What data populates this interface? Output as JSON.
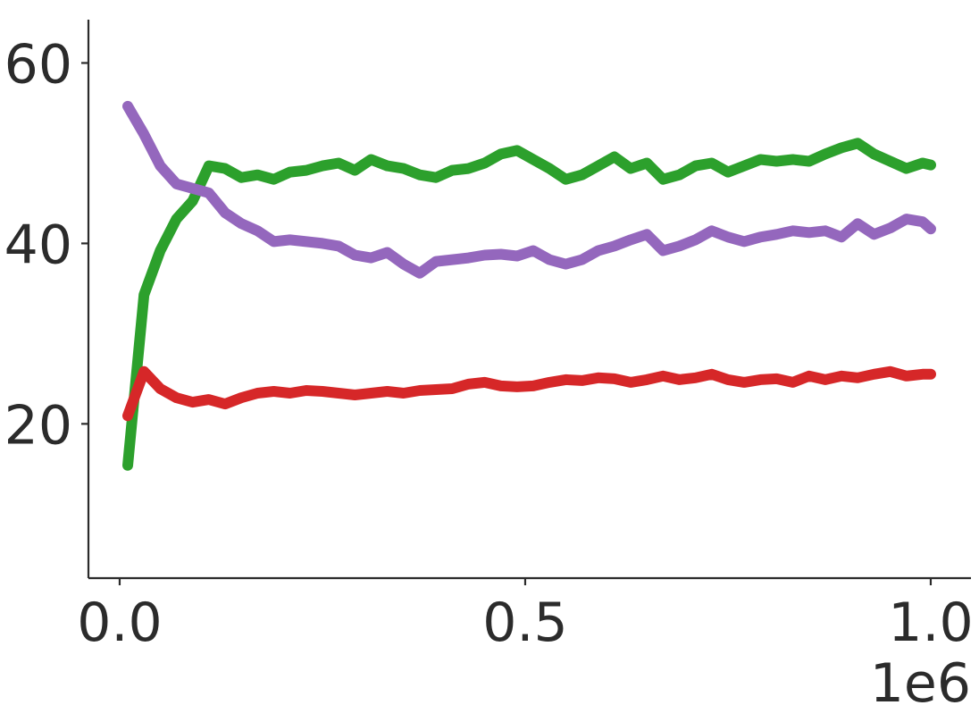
{
  "chart_data": {
    "type": "line",
    "x": [
      10000,
      30000,
      50000,
      70000,
      90000,
      110000,
      130000,
      150000,
      170000,
      190000,
      210000,
      230000,
      250000,
      270000,
      290000,
      310000,
      330000,
      350000,
      370000,
      390000,
      410000,
      430000,
      450000,
      470000,
      490000,
      510000,
      530000,
      550000,
      570000,
      590000,
      610000,
      630000,
      650000,
      670000,
      690000,
      710000,
      730000,
      750000,
      770000,
      790000,
      810000,
      830000,
      850000,
      870000,
      890000,
      910000,
      930000,
      950000,
      970000,
      990000,
      1000000
    ],
    "series": [
      {
        "color": "#2ca02c",
        "values": [
          15.4,
          34.3,
          39.2,
          42.7,
          44.7,
          48.6,
          48.3,
          47.3,
          47.6,
          47.1,
          47.9,
          48.1,
          48.6,
          48.9,
          48.1,
          49.3,
          48.6,
          48.3,
          47.6,
          47.3,
          48.1,
          48.3,
          48.9,
          49.9,
          50.3,
          49.3,
          48.3,
          47.1,
          47.6,
          48.6,
          49.6,
          48.3,
          48.9,
          47.1,
          47.6,
          48.6,
          48.9,
          47.9,
          48.6,
          49.3,
          49.1,
          49.3,
          49.1,
          49.9,
          50.6,
          51.1,
          49.9,
          49.1,
          48.3,
          48.9,
          48.7
        ]
      },
      {
        "color": "#9467bd",
        "values": [
          55.2,
          52.1,
          48.6,
          46.6,
          46.1,
          45.6,
          43.4,
          42.2,
          41.4,
          40.2,
          40.4,
          40.2,
          40.0,
          39.7,
          38.7,
          38.4,
          39.0,
          37.7,
          36.7,
          38.0,
          38.2,
          38.4,
          38.7,
          38.8,
          38.6,
          39.2,
          38.2,
          37.7,
          38.2,
          39.2,
          39.7,
          40.4,
          41.0,
          39.2,
          39.7,
          40.4,
          41.4,
          40.7,
          40.2,
          40.7,
          41.0,
          41.4,
          41.2,
          41.4,
          40.7,
          42.2,
          41.0,
          41.7,
          42.7,
          42.4,
          41.6
        ]
      },
      {
        "color": "#d62728",
        "values": [
          20.9,
          25.8,
          23.9,
          22.9,
          22.4,
          22.7,
          22.2,
          22.9,
          23.4,
          23.6,
          23.4,
          23.7,
          23.6,
          23.4,
          23.2,
          23.4,
          23.6,
          23.4,
          23.7,
          23.8,
          23.9,
          24.4,
          24.6,
          24.2,
          24.1,
          24.2,
          24.6,
          24.9,
          24.8,
          25.1,
          25.0,
          24.6,
          24.9,
          25.3,
          24.9,
          25.1,
          25.5,
          24.9,
          24.6,
          24.9,
          25.0,
          24.6,
          25.3,
          24.9,
          25.3,
          25.1,
          25.5,
          25.8,
          25.3,
          25.5,
          25.5
        ]
      }
    ],
    "xlim": [
      -38500,
      1049600
    ],
    "xticks": [
      {
        "value": 0,
        "label": "0.0"
      },
      {
        "value": 500000,
        "label": "0.5"
      },
      {
        "value": 1000000,
        "label": "1.0"
      }
    ],
    "x_offset_label": "1e6",
    "ylim": [
      2.9,
      64.8
    ],
    "yticks": [
      20,
      40,
      60
    ]
  }
}
